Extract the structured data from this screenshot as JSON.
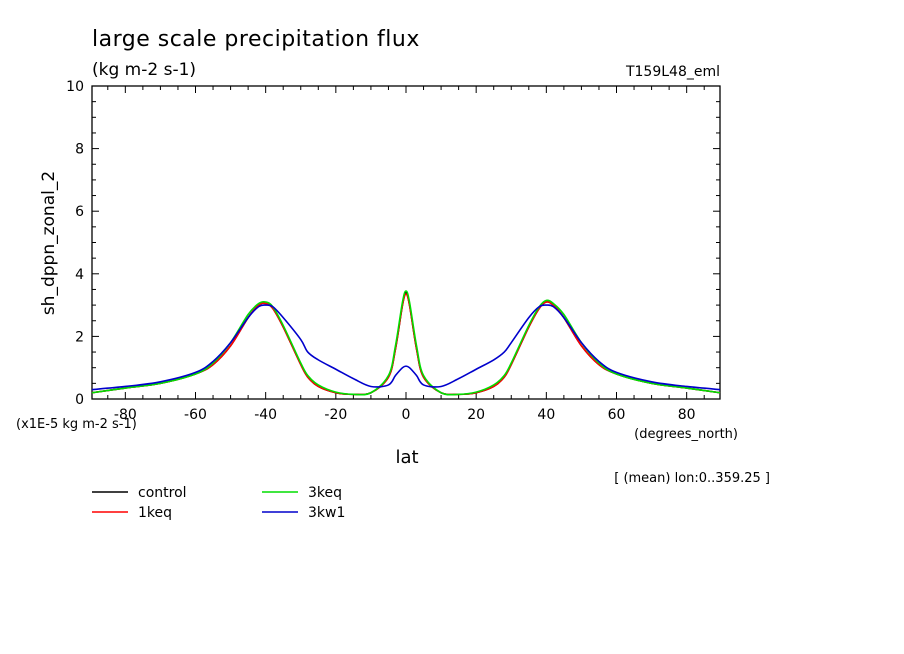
{
  "chart_data": {
    "type": "line",
    "title": "large scale precipitation flux",
    "subtitle": "(kg m-2 s-1)",
    "run_label": "T159L48_eml",
    "ylabel": "sh_dppn_zonal_2",
    "xlabel": "lat",
    "x_unit_label": "(degrees_north)",
    "y_scale_label": "(x1E-5 kg m-2 s-1)",
    "footnote": "[ (mean) lon:0..359.25 ]",
    "xlim": [
      -89.5,
      89.5
    ],
    "ylim": [
      0,
      10
    ],
    "x_ticks": [
      -80,
      -60,
      -40,
      -20,
      0,
      20,
      40,
      60,
      80
    ],
    "x_tick_labels": [
      "-80",
      "-60",
      "-40",
      "-20",
      "0",
      "20",
      "40",
      "60",
      "80"
    ],
    "y_ticks": [
      0,
      2,
      4,
      6,
      8,
      10
    ],
    "y_tick_labels": [
      "0",
      "2",
      "4",
      "6",
      "8",
      "10"
    ],
    "legend_placement": "bottom-left, below plot",
    "x": [
      -89.5,
      -80,
      -70,
      -60,
      -55,
      -50,
      -45,
      -42,
      -40,
      -38,
      -35,
      -30,
      -28,
      -25,
      -20,
      -15,
      -10,
      -5,
      -3,
      -1,
      0,
      1,
      3,
      5,
      10,
      15,
      20,
      25,
      28,
      30,
      35,
      38,
      40,
      42,
      45,
      50,
      55,
      60,
      70,
      80,
      89.5
    ],
    "series": [
      {
        "name": "control",
        "color": "#000000",
        "values": [
          0.2,
          0.35,
          0.5,
          0.8,
          1.1,
          1.7,
          2.6,
          3.0,
          3.05,
          2.9,
          2.3,
          1.1,
          0.7,
          0.4,
          0.2,
          0.15,
          0.2,
          0.7,
          1.6,
          3.0,
          3.4,
          3.0,
          1.6,
          0.7,
          0.2,
          0.15,
          0.2,
          0.4,
          0.7,
          1.1,
          2.3,
          2.9,
          3.1,
          3.0,
          2.6,
          1.7,
          1.1,
          0.8,
          0.5,
          0.35,
          0.2
        ]
      },
      {
        "name": "1keq",
        "color": "#ff0000",
        "values": [
          0.2,
          0.35,
          0.5,
          0.8,
          1.1,
          1.7,
          2.6,
          3.0,
          3.05,
          2.9,
          2.3,
          1.1,
          0.7,
          0.4,
          0.2,
          0.15,
          0.2,
          0.7,
          1.6,
          3.0,
          3.35,
          3.0,
          1.6,
          0.7,
          0.2,
          0.15,
          0.2,
          0.4,
          0.7,
          1.1,
          2.3,
          2.9,
          3.1,
          3.0,
          2.6,
          1.7,
          1.1,
          0.8,
          0.5,
          0.35,
          0.2
        ]
      },
      {
        "name": "3keq",
        "color": "#00dd00",
        "values": [
          0.2,
          0.35,
          0.5,
          0.8,
          1.15,
          1.8,
          2.7,
          3.05,
          3.1,
          2.95,
          2.35,
          1.15,
          0.75,
          0.45,
          0.22,
          0.15,
          0.2,
          0.75,
          1.7,
          3.1,
          3.45,
          3.1,
          1.7,
          0.75,
          0.2,
          0.15,
          0.22,
          0.45,
          0.75,
          1.15,
          2.35,
          2.95,
          3.15,
          3.05,
          2.7,
          1.8,
          1.15,
          0.8,
          0.5,
          0.35,
          0.2
        ]
      },
      {
        "name": "3kw1",
        "color": "#0000cc",
        "values": [
          0.3,
          0.4,
          0.55,
          0.85,
          1.2,
          1.8,
          2.6,
          2.95,
          3.0,
          2.95,
          2.6,
          1.9,
          1.5,
          1.25,
          0.95,
          0.65,
          0.4,
          0.45,
          0.75,
          1.0,
          1.05,
          1.0,
          0.75,
          0.45,
          0.4,
          0.65,
          0.95,
          1.25,
          1.5,
          1.8,
          2.6,
          2.95,
          3.0,
          2.95,
          2.6,
          1.8,
          1.2,
          0.85,
          0.55,
          0.4,
          0.3
        ]
      }
    ]
  }
}
